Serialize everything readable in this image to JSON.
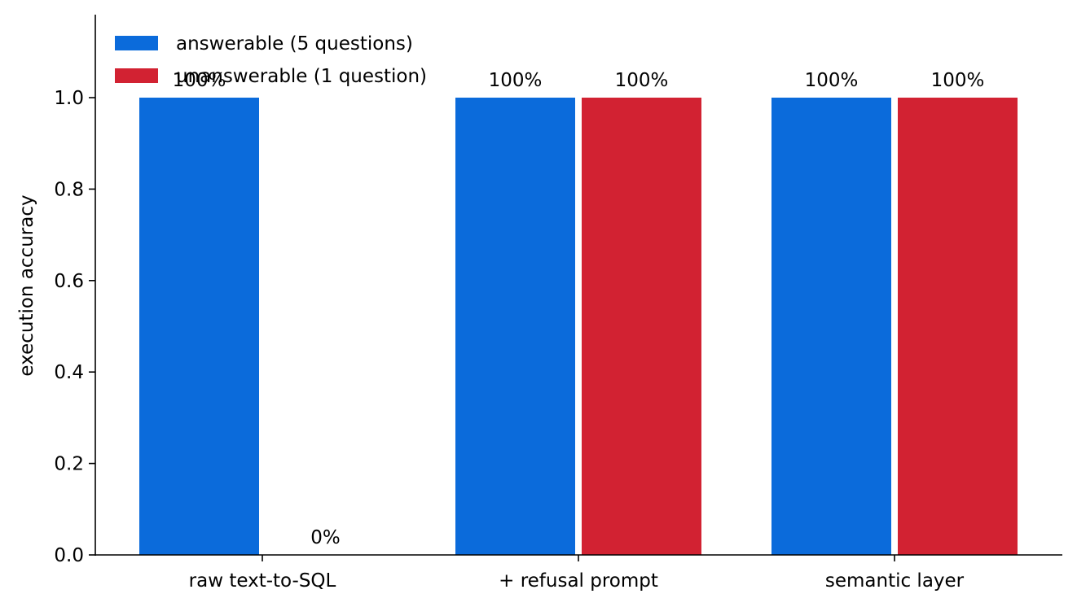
{
  "chart_data": {
    "type": "bar",
    "title": "",
    "xlabel": "",
    "ylabel": "execution accuracy",
    "ylim": [
      0,
      1.18
    ],
    "yticks": [
      "0.0",
      "0.2",
      "0.4",
      "0.6",
      "0.8",
      "1.0"
    ],
    "ytick_values": [
      0.0,
      0.2,
      0.4,
      0.6,
      0.8,
      1.0
    ],
    "categories": [
      "raw text-to-SQL",
      "+ refusal prompt",
      "semantic layer"
    ],
    "series": [
      {
        "name": "answerable (5 questions)",
        "color": "#0b6bdb",
        "values": [
          1.0,
          1.0,
          1.0
        ],
        "labels": [
          "100%",
          "100%",
          "100%"
        ]
      },
      {
        "name": "unanswerable (1 question)",
        "color": "#d22232",
        "values": [
          0.0,
          1.0,
          1.0
        ],
        "labels": [
          "0%",
          "100%",
          "100%"
        ]
      }
    ],
    "legend_position": "top-left",
    "grid": false
  }
}
